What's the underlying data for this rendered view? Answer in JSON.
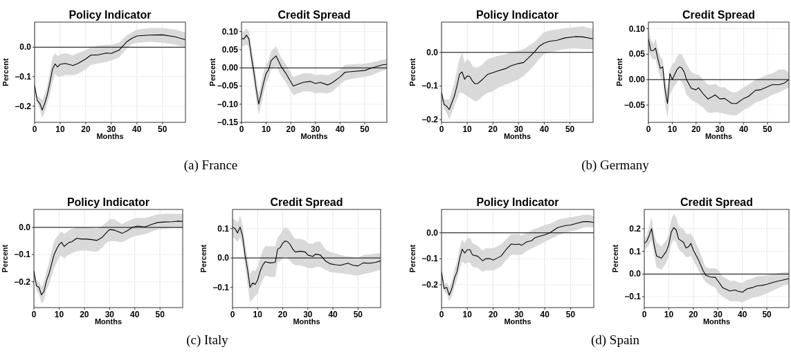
{
  "chart_data": [
    {
      "type": "line",
      "title": "Policy Indicator",
      "xlabel": "Months",
      "ylabel": "Percent",
      "annotations": [
        "(a) France"
      ],
      "xlim": [
        0,
        59
      ],
      "xticks": [
        0,
        10,
        20,
        30,
        40,
        50
      ],
      "ylim": [
        -0.255,
        0.085
      ],
      "yticks": [
        {
          "value": -0.2,
          "label": "−0.2"
        },
        {
          "value": -0.1,
          "label": "−0.1"
        },
        {
          "value": 0,
          "label": "0.0"
        }
      ],
      "grid": true,
      "ref_lines": [
        {
          "axis": "y",
          "value": 0,
          "color": "#000000"
        }
      ],
      "series": [
        {
          "color": "#000000",
          "x": [
            0,
            1,
            2,
            3,
            4,
            5,
            6,
            7,
            8,
            9,
            10,
            12,
            15,
            17,
            20,
            22,
            25,
            28,
            30,
            33,
            36,
            38,
            40,
            45,
            50,
            55,
            59
          ],
          "values": [
            -0.13,
            -0.18,
            -0.19,
            -0.213,
            -0.19,
            -0.16,
            -0.12,
            -0.075,
            -0.057,
            -0.067,
            -0.058,
            -0.055,
            -0.062,
            -0.055,
            -0.04,
            -0.027,
            -0.026,
            -0.02,
            -0.021,
            -0.01,
            0.018,
            0.03,
            0.038,
            0.041,
            0.042,
            0.035,
            0.025
          ],
          "lower": [
            -0.14,
            -0.19,
            -0.21,
            -0.24,
            -0.22,
            -0.19,
            -0.16,
            -0.12,
            -0.09,
            -0.1,
            -0.1,
            -0.095,
            -0.095,
            -0.09,
            -0.075,
            -0.06,
            -0.055,
            -0.05,
            -0.045,
            -0.035,
            -0.005,
            0.01,
            0.015,
            0.018,
            0.015,
            0.008,
            0.0
          ],
          "upper": [
            -0.12,
            -0.165,
            -0.17,
            -0.18,
            -0.16,
            -0.13,
            -0.08,
            -0.035,
            -0.02,
            -0.03,
            -0.025,
            -0.02,
            -0.028,
            -0.02,
            -0.01,
            0.0,
            0.005,
            0.008,
            0.008,
            0.015,
            0.04,
            0.05,
            0.06,
            0.065,
            0.065,
            0.06,
            0.05
          ]
        }
      ]
    },
    {
      "type": "line",
      "title": "Credit Spread",
      "xlabel": "Months",
      "ylabel": "Percent",
      "xlim": [
        0,
        59
      ],
      "xticks": [
        0,
        10,
        20,
        30,
        40,
        50
      ],
      "ylim": [
        -0.15,
        0.126
      ],
      "yticks": [
        {
          "value": -0.15,
          "label": "−0.15"
        },
        {
          "value": -0.1,
          "label": "−0.10"
        },
        {
          "value": -0.05,
          "label": "−0.05"
        },
        {
          "value": 0,
          "label": "0.00"
        },
        {
          "value": 0.05,
          "label": "0.05"
        },
        {
          "value": 0.1,
          "label": "0.10"
        }
      ],
      "grid": true,
      "ref_lines": [
        {
          "axis": "y",
          "value": 0,
          "color": "#000000"
        }
      ],
      "series": [
        {
          "color": "#000000",
          "x": [
            0,
            1,
            2,
            3,
            4,
            5,
            6,
            7,
            8,
            9,
            10,
            11,
            12,
            14,
            16,
            18,
            21,
            23,
            25,
            28,
            30,
            32,
            35,
            37,
            40,
            42,
            45,
            50,
            53,
            57,
            59
          ],
          "values": [
            0.08,
            0.08,
            0.09,
            0.08,
            0.03,
            -0.01,
            -0.06,
            -0.1,
            -0.07,
            -0.04,
            -0.015,
            -0.005,
            0.02,
            0.033,
            0.005,
            -0.015,
            -0.05,
            -0.045,
            -0.04,
            -0.037,
            -0.043,
            -0.04,
            -0.047,
            -0.04,
            -0.025,
            -0.012,
            -0.01,
            -0.007,
            0.0,
            0.008,
            0.01
          ],
          "lower": [
            0.06,
            0.06,
            0.065,
            0.055,
            0.0,
            -0.04,
            -0.09,
            -0.13,
            -0.1,
            -0.07,
            -0.04,
            -0.03,
            -0.005,
            0.005,
            -0.02,
            -0.04,
            -0.075,
            -0.07,
            -0.065,
            -0.065,
            -0.07,
            -0.068,
            -0.07,
            -0.065,
            -0.045,
            -0.035,
            -0.03,
            -0.025,
            -0.02,
            -0.008,
            -0.005
          ],
          "upper": [
            0.1,
            0.1,
            0.11,
            0.1,
            0.06,
            0.02,
            -0.03,
            -0.07,
            -0.04,
            -0.01,
            0.01,
            0.02,
            0.045,
            0.06,
            0.03,
            0.01,
            -0.025,
            -0.02,
            -0.015,
            -0.015,
            -0.02,
            -0.018,
            -0.02,
            -0.015,
            -0.005,
            0.008,
            0.01,
            0.012,
            0.015,
            0.022,
            0.025
          ]
        }
      ]
    },
    {
      "type": "line",
      "title": "Policy Indicator",
      "xlabel": "Months",
      "ylabel": "Percent",
      "annotations": [
        "(b) Germany"
      ],
      "xlim": [
        0,
        59
      ],
      "xticks": [
        0,
        10,
        20,
        30,
        40,
        50
      ],
      "ylim": [
        -0.208,
        0.09
      ],
      "yticks": [
        {
          "value": -0.2,
          "label": "−0.2"
        },
        {
          "value": -0.1,
          "label": "−0.1"
        },
        {
          "value": 0,
          "label": "0.0"
        }
      ],
      "grid": true,
      "ref_lines": [
        {
          "axis": "y",
          "value": 0,
          "color": "#000000"
        }
      ],
      "series": [
        {
          "color": "#000000",
          "x": [
            0,
            1,
            2,
            3,
            4,
            5,
            6,
            7,
            8,
            9,
            10,
            11,
            12,
            13,
            14,
            16,
            18,
            20,
            22,
            25,
            27,
            30,
            32,
            34,
            36,
            38,
            40,
            42,
            45,
            48,
            52,
            55,
            59
          ],
          "values": [
            -0.12,
            -0.155,
            -0.16,
            -0.17,
            -0.15,
            -0.13,
            -0.1,
            -0.065,
            -0.058,
            -0.08,
            -0.07,
            -0.072,
            -0.085,
            -0.093,
            -0.093,
            -0.08,
            -0.065,
            -0.06,
            -0.055,
            -0.048,
            -0.04,
            -0.033,
            -0.03,
            -0.015,
            0.0,
            0.018,
            0.028,
            0.033,
            0.036,
            0.043,
            0.047,
            0.046,
            0.04
          ],
          "lower": [
            -0.13,
            -0.17,
            -0.18,
            -0.2,
            -0.18,
            -0.16,
            -0.14,
            -0.12,
            -0.12,
            -0.125,
            -0.13,
            -0.135,
            -0.14,
            -0.145,
            -0.145,
            -0.13,
            -0.12,
            -0.115,
            -0.105,
            -0.095,
            -0.09,
            -0.08,
            -0.07,
            -0.055,
            -0.04,
            -0.02,
            -0.005,
            0.0,
            0.005,
            0.01,
            0.012,
            0.01,
            0.01
          ],
          "upper": [
            -0.11,
            -0.14,
            -0.14,
            -0.14,
            -0.12,
            -0.09,
            -0.055,
            -0.02,
            0.0,
            -0.03,
            -0.02,
            -0.025,
            -0.04,
            -0.045,
            -0.045,
            -0.035,
            -0.02,
            -0.015,
            -0.01,
            -0.005,
            0.0,
            0.005,
            0.01,
            0.02,
            0.03,
            0.045,
            0.06,
            0.065,
            0.068,
            0.072,
            0.075,
            0.077,
            0.07
          ]
        }
      ]
    },
    {
      "type": "line",
      "title": "Credit Spread",
      "xlabel": "Months",
      "ylabel": "Percent",
      "xlim": [
        0,
        59
      ],
      "xticks": [
        0,
        10,
        20,
        30,
        40,
        50
      ],
      "ylim": [
        -0.084,
        0.113
      ],
      "yticks": [
        {
          "value": -0.05,
          "label": "−0.05"
        },
        {
          "value": 0,
          "label": "0.00"
        },
        {
          "value": 0.05,
          "label": "0.05"
        },
        {
          "value": 0.1,
          "label": "0.10"
        }
      ],
      "grid": true,
      "ref_lines": [
        {
          "axis": "y",
          "value": 0,
          "color": "#000000"
        }
      ],
      "series": [
        {
          "color": "#000000",
          "x": [
            0,
            1,
            2,
            3,
            4,
            5,
            6,
            7,
            8,
            9,
            10,
            11,
            12,
            13,
            14,
            15,
            16,
            18,
            20,
            21,
            23,
            25,
            27,
            28,
            30,
            32,
            35,
            37,
            40,
            42,
            45,
            47,
            50,
            52,
            55,
            57,
            59
          ],
          "values": [
            0.08,
            0.057,
            0.057,
            0.062,
            0.04,
            0.022,
            0.025,
            -0.02,
            -0.047,
            0.012,
            0.0,
            0.01,
            0.02,
            0.025,
            0.023,
            0.015,
            0.0,
            -0.017,
            -0.02,
            -0.016,
            -0.028,
            -0.038,
            -0.033,
            -0.03,
            -0.038,
            -0.037,
            -0.047,
            -0.047,
            -0.037,
            -0.033,
            -0.021,
            -0.02,
            -0.014,
            -0.01,
            -0.01,
            -0.007,
            0.0
          ],
          "lower": [
            0.06,
            0.045,
            0.04,
            0.04,
            0.02,
            0.005,
            0.0,
            -0.05,
            -0.075,
            -0.03,
            -0.02,
            -0.012,
            -0.005,
            0.0,
            -0.005,
            -0.015,
            -0.03,
            -0.04,
            -0.045,
            -0.048,
            -0.055,
            -0.065,
            -0.065,
            -0.064,
            -0.065,
            -0.067,
            -0.07,
            -0.07,
            -0.06,
            -0.055,
            -0.045,
            -0.042,
            -0.035,
            -0.03,
            -0.025,
            -0.02,
            -0.015
          ],
          "upper": [
            0.1,
            0.08,
            0.07,
            0.08,
            0.06,
            0.045,
            0.04,
            0.0,
            -0.02,
            0.02,
            0.03,
            0.035,
            0.045,
            0.05,
            0.05,
            0.04,
            0.03,
            0.015,
            0.01,
            0.01,
            0.0,
            -0.01,
            -0.01,
            -0.008,
            -0.015,
            -0.015,
            -0.025,
            -0.025,
            -0.015,
            -0.01,
            0.0,
            0.003,
            0.01,
            0.012,
            0.02,
            0.02,
            0.015
          ]
        }
      ]
    },
    {
      "type": "line",
      "title": "Policy Indicator",
      "xlabel": "Months",
      "ylabel": "Percent",
      "annotations": [
        "(c) Italy"
      ],
      "xlim": [
        0,
        59
      ],
      "xticks": [
        0,
        10,
        20,
        30,
        40,
        50
      ],
      "ylim": [
        -0.295,
        0.066
      ],
      "yticks": [
        {
          "value": -0.2,
          "label": "−0.2"
        },
        {
          "value": -0.1,
          "label": "−0.1"
        },
        {
          "value": 0,
          "label": "0.0"
        }
      ],
      "grid": true,
      "ref_lines": [
        {
          "axis": "y",
          "value": 0,
          "color": "#000000"
        }
      ],
      "series": [
        {
          "color": "#000000",
          "x": [
            0,
            1,
            2,
            3,
            4,
            5,
            6,
            7,
            8,
            9,
            10,
            11,
            12,
            13,
            14,
            15,
            17,
            19,
            21,
            23,
            25,
            27,
            29,
            30,
            32,
            35,
            37,
            39,
            41,
            44,
            47,
            49,
            52,
            55,
            57,
            59
          ],
          "values": [
            -0.16,
            -0.215,
            -0.22,
            -0.248,
            -0.235,
            -0.195,
            -0.17,
            -0.135,
            -0.1,
            -0.08,
            -0.063,
            -0.055,
            -0.07,
            -0.062,
            -0.055,
            -0.053,
            -0.04,
            -0.043,
            -0.043,
            -0.045,
            -0.048,
            -0.037,
            -0.017,
            -0.008,
            -0.01,
            -0.022,
            -0.012,
            0.0,
            0.005,
            0.002,
            0.012,
            0.018,
            0.02,
            0.021,
            0.023,
            0.022
          ],
          "lower": [
            -0.17,
            -0.235,
            -0.245,
            -0.28,
            -0.27,
            -0.23,
            -0.21,
            -0.18,
            -0.15,
            -0.13,
            -0.11,
            -0.105,
            -0.115,
            -0.105,
            -0.1,
            -0.095,
            -0.088,
            -0.085,
            -0.085,
            -0.088,
            -0.09,
            -0.075,
            -0.055,
            -0.05,
            -0.05,
            -0.055,
            -0.045,
            -0.035,
            -0.03,
            -0.025,
            -0.015,
            -0.008,
            -0.005,
            -0.002,
            -0.003,
            -0.003
          ],
          "upper": [
            -0.15,
            -0.195,
            -0.2,
            -0.22,
            -0.2,
            -0.16,
            -0.13,
            -0.09,
            -0.05,
            -0.035,
            -0.025,
            -0.015,
            -0.025,
            -0.018,
            -0.01,
            -0.005,
            0.0,
            0.0,
            0.0,
            -0.002,
            -0.005,
            0.005,
            0.02,
            0.03,
            0.03,
            0.012,
            0.022,
            0.03,
            0.035,
            0.035,
            0.042,
            0.048,
            0.05,
            0.05,
            0.05,
            0.05
          ]
        }
      ]
    },
    {
      "type": "line",
      "title": "Credit Spread",
      "xlabel": "Months",
      "ylabel": "Percent",
      "xlim": [
        0,
        59
      ],
      "xticks": [
        0,
        10,
        20,
        30,
        40,
        50
      ],
      "ylim": [
        -0.169,
        0.165
      ],
      "yticks": [
        {
          "value": -0.1,
          "label": "−0.1"
        },
        {
          "value": 0,
          "label": "0.0"
        },
        {
          "value": 0.1,
          "label": "0.1"
        }
      ],
      "grid": true,
      "ref_lines": [
        {
          "axis": "y",
          "value": 0,
          "color": "#000000"
        }
      ],
      "series": [
        {
          "color": "#000000",
          "x": [
            0,
            1,
            2,
            3,
            4,
            5,
            6,
            7,
            8,
            9,
            10,
            11,
            12,
            13,
            15,
            17,
            18,
            19,
            20,
            21,
            22,
            23,
            24,
            25,
            27,
            29,
            30,
            32,
            33,
            35,
            37,
            39,
            41,
            43,
            46,
            48,
            50,
            52,
            55,
            57,
            59
          ],
          "values": [
            0.105,
            0.1,
            0.085,
            0.105,
            0.075,
            0.01,
            -0.04,
            -0.1,
            -0.085,
            -0.09,
            -0.075,
            -0.045,
            -0.025,
            -0.013,
            -0.017,
            -0.015,
            0.03,
            0.035,
            0.05,
            0.058,
            0.055,
            0.045,
            0.03,
            0.02,
            0.023,
            0.02,
            0.01,
            0.005,
            0.013,
            0.01,
            -0.01,
            -0.02,
            -0.023,
            -0.025,
            -0.018,
            -0.025,
            -0.027,
            -0.017,
            -0.018,
            -0.015,
            -0.01
          ],
          "lower": [
            0.07,
            0.065,
            0.055,
            0.07,
            0.04,
            -0.03,
            -0.09,
            -0.15,
            -0.14,
            -0.13,
            -0.12,
            -0.095,
            -0.075,
            -0.06,
            -0.065,
            -0.065,
            -0.015,
            -0.01,
            0.0,
            0.005,
            0.0,
            -0.01,
            -0.02,
            -0.025,
            -0.025,
            -0.03,
            -0.035,
            -0.035,
            -0.03,
            -0.03,
            -0.04,
            -0.048,
            -0.05,
            -0.052,
            -0.055,
            -0.058,
            -0.06,
            -0.055,
            -0.05,
            -0.045,
            -0.04
          ],
          "upper": [
            0.135,
            0.13,
            0.12,
            0.145,
            0.11,
            0.05,
            0.0,
            -0.055,
            -0.04,
            -0.045,
            -0.03,
            0.0,
            0.025,
            0.04,
            0.04,
            0.04,
            0.07,
            0.08,
            0.095,
            0.105,
            0.1,
            0.09,
            0.075,
            0.065,
            0.065,
            0.06,
            0.05,
            0.048,
            0.055,
            0.055,
            0.03,
            0.02,
            0.015,
            0.01,
            0.005,
            0.003,
            0.0,
            0.01,
            0.012,
            0.015,
            0.017
          ]
        }
      ]
    },
    {
      "type": "line",
      "title": "Policy Indicator",
      "xlabel": "Months",
      "ylabel": "Percent",
      "annotations": [
        "(d) Spain"
      ],
      "xlim": [
        0,
        59
      ],
      "xticks": [
        0,
        10,
        20,
        30,
        40,
        50
      ],
      "ylim": [
        -0.288,
        0.09
      ],
      "yticks": [
        {
          "value": -0.2,
          "label": "−0.2"
        },
        {
          "value": -0.1,
          "label": "−0.1"
        },
        {
          "value": 0,
          "label": "0.0"
        }
      ],
      "grid": true,
      "ref_lines": [
        {
          "axis": "y",
          "value": 0,
          "color": "#000000"
        }
      ],
      "series": [
        {
          "color": "#000000",
          "x": [
            0,
            1,
            2,
            3,
            4,
            5,
            6,
            7,
            8,
            9,
            10,
            11,
            12,
            14,
            16,
            17,
            19,
            20,
            21,
            23,
            25,
            27,
            29,
            30,
            31,
            33,
            35,
            36,
            38,
            40,
            42,
            45,
            48,
            50,
            53,
            55,
            57,
            59
          ],
          "values": [
            -0.15,
            -0.215,
            -0.21,
            -0.24,
            -0.215,
            -0.175,
            -0.15,
            -0.1,
            -0.063,
            -0.078,
            -0.065,
            -0.065,
            -0.085,
            -0.09,
            -0.108,
            -0.1,
            -0.1,
            -0.105,
            -0.1,
            -0.09,
            -0.065,
            -0.043,
            -0.045,
            -0.043,
            -0.048,
            -0.035,
            -0.03,
            -0.02,
            -0.013,
            -0.008,
            0.0,
            0.02,
            0.028,
            0.03,
            0.038,
            0.043,
            0.043,
            0.04
          ],
          "lower": [
            -0.16,
            -0.23,
            -0.235,
            -0.265,
            -0.245,
            -0.21,
            -0.18,
            -0.14,
            -0.11,
            -0.12,
            -0.115,
            -0.115,
            -0.13,
            -0.135,
            -0.15,
            -0.145,
            -0.145,
            -0.145,
            -0.14,
            -0.13,
            -0.105,
            -0.085,
            -0.085,
            -0.085,
            -0.085,
            -0.07,
            -0.06,
            -0.055,
            -0.045,
            -0.035,
            -0.025,
            -0.01,
            0.0,
            0.005,
            0.012,
            0.02,
            0.022,
            0.02
          ],
          "upper": [
            -0.14,
            -0.2,
            -0.19,
            -0.21,
            -0.185,
            -0.14,
            -0.11,
            -0.06,
            -0.025,
            -0.04,
            -0.02,
            -0.02,
            -0.04,
            -0.05,
            -0.07,
            -0.06,
            -0.06,
            -0.06,
            -0.055,
            -0.045,
            -0.025,
            -0.005,
            -0.005,
            -0.005,
            -0.01,
            0.0,
            0.01,
            0.015,
            0.022,
            0.03,
            0.035,
            0.05,
            0.057,
            0.06,
            0.065,
            0.07,
            0.07,
            0.065
          ]
        }
      ]
    },
    {
      "type": "line",
      "title": "Credit Spread",
      "xlabel": "Months",
      "ylabel": "Percent",
      "xlim": [
        0,
        59
      ],
      "xticks": [
        0,
        10,
        20,
        30,
        40,
        50
      ],
      "ylim": [
        -0.148,
        0.285
      ],
      "yticks": [
        {
          "value": -0.1,
          "label": "−0.1"
        },
        {
          "value": 0,
          "label": "0.0"
        },
        {
          "value": 0.1,
          "label": "0.1"
        },
        {
          "value": 0.2,
          "label": "0.2"
        }
      ],
      "grid": true,
      "ref_lines": [
        {
          "axis": "y",
          "value": 0,
          "color": "#000000"
        }
      ],
      "series": [
        {
          "color": "#000000",
          "x": [
            0,
            1,
            2,
            3,
            4,
            5,
            7,
            9,
            10,
            11,
            12,
            13,
            14,
            16,
            17,
            18,
            19,
            20,
            22,
            24,
            25,
            27,
            29,
            30,
            32,
            35,
            37,
            38,
            40,
            42,
            44,
            46,
            48,
            50,
            53,
            55,
            57,
            59
          ],
          "values": [
            0.135,
            0.145,
            0.17,
            0.2,
            0.13,
            0.08,
            0.07,
            0.1,
            0.13,
            0.185,
            0.205,
            0.195,
            0.155,
            0.14,
            0.115,
            0.12,
            0.135,
            0.105,
            0.065,
            0.015,
            -0.005,
            -0.013,
            -0.015,
            -0.03,
            -0.06,
            -0.075,
            -0.07,
            -0.075,
            -0.08,
            -0.065,
            -0.06,
            -0.052,
            -0.05,
            -0.045,
            -0.035,
            -0.03,
            -0.025,
            -0.02
          ],
          "lower": [
            0.11,
            0.115,
            0.13,
            0.15,
            0.09,
            0.03,
            0.02,
            0.05,
            0.08,
            0.13,
            0.15,
            0.14,
            0.11,
            0.09,
            0.075,
            0.075,
            0.08,
            0.06,
            0.02,
            -0.02,
            -0.035,
            -0.05,
            -0.06,
            -0.08,
            -0.1,
            -0.12,
            -0.12,
            -0.12,
            -0.125,
            -0.115,
            -0.105,
            -0.1,
            -0.095,
            -0.085,
            -0.07,
            -0.06,
            -0.05,
            -0.045
          ],
          "upper": [
            0.15,
            0.17,
            0.21,
            0.25,
            0.18,
            0.14,
            0.12,
            0.15,
            0.18,
            0.24,
            0.265,
            0.25,
            0.21,
            0.2,
            0.18,
            0.175,
            0.18,
            0.16,
            0.115,
            0.06,
            0.03,
            0.025,
            0.025,
            0.02,
            -0.01,
            -0.03,
            -0.03,
            -0.035,
            -0.04,
            -0.025,
            -0.02,
            -0.01,
            -0.008,
            -0.005,
            0.0,
            0.005,
            0.008,
            0.01
          ]
        }
      ]
    }
  ]
}
